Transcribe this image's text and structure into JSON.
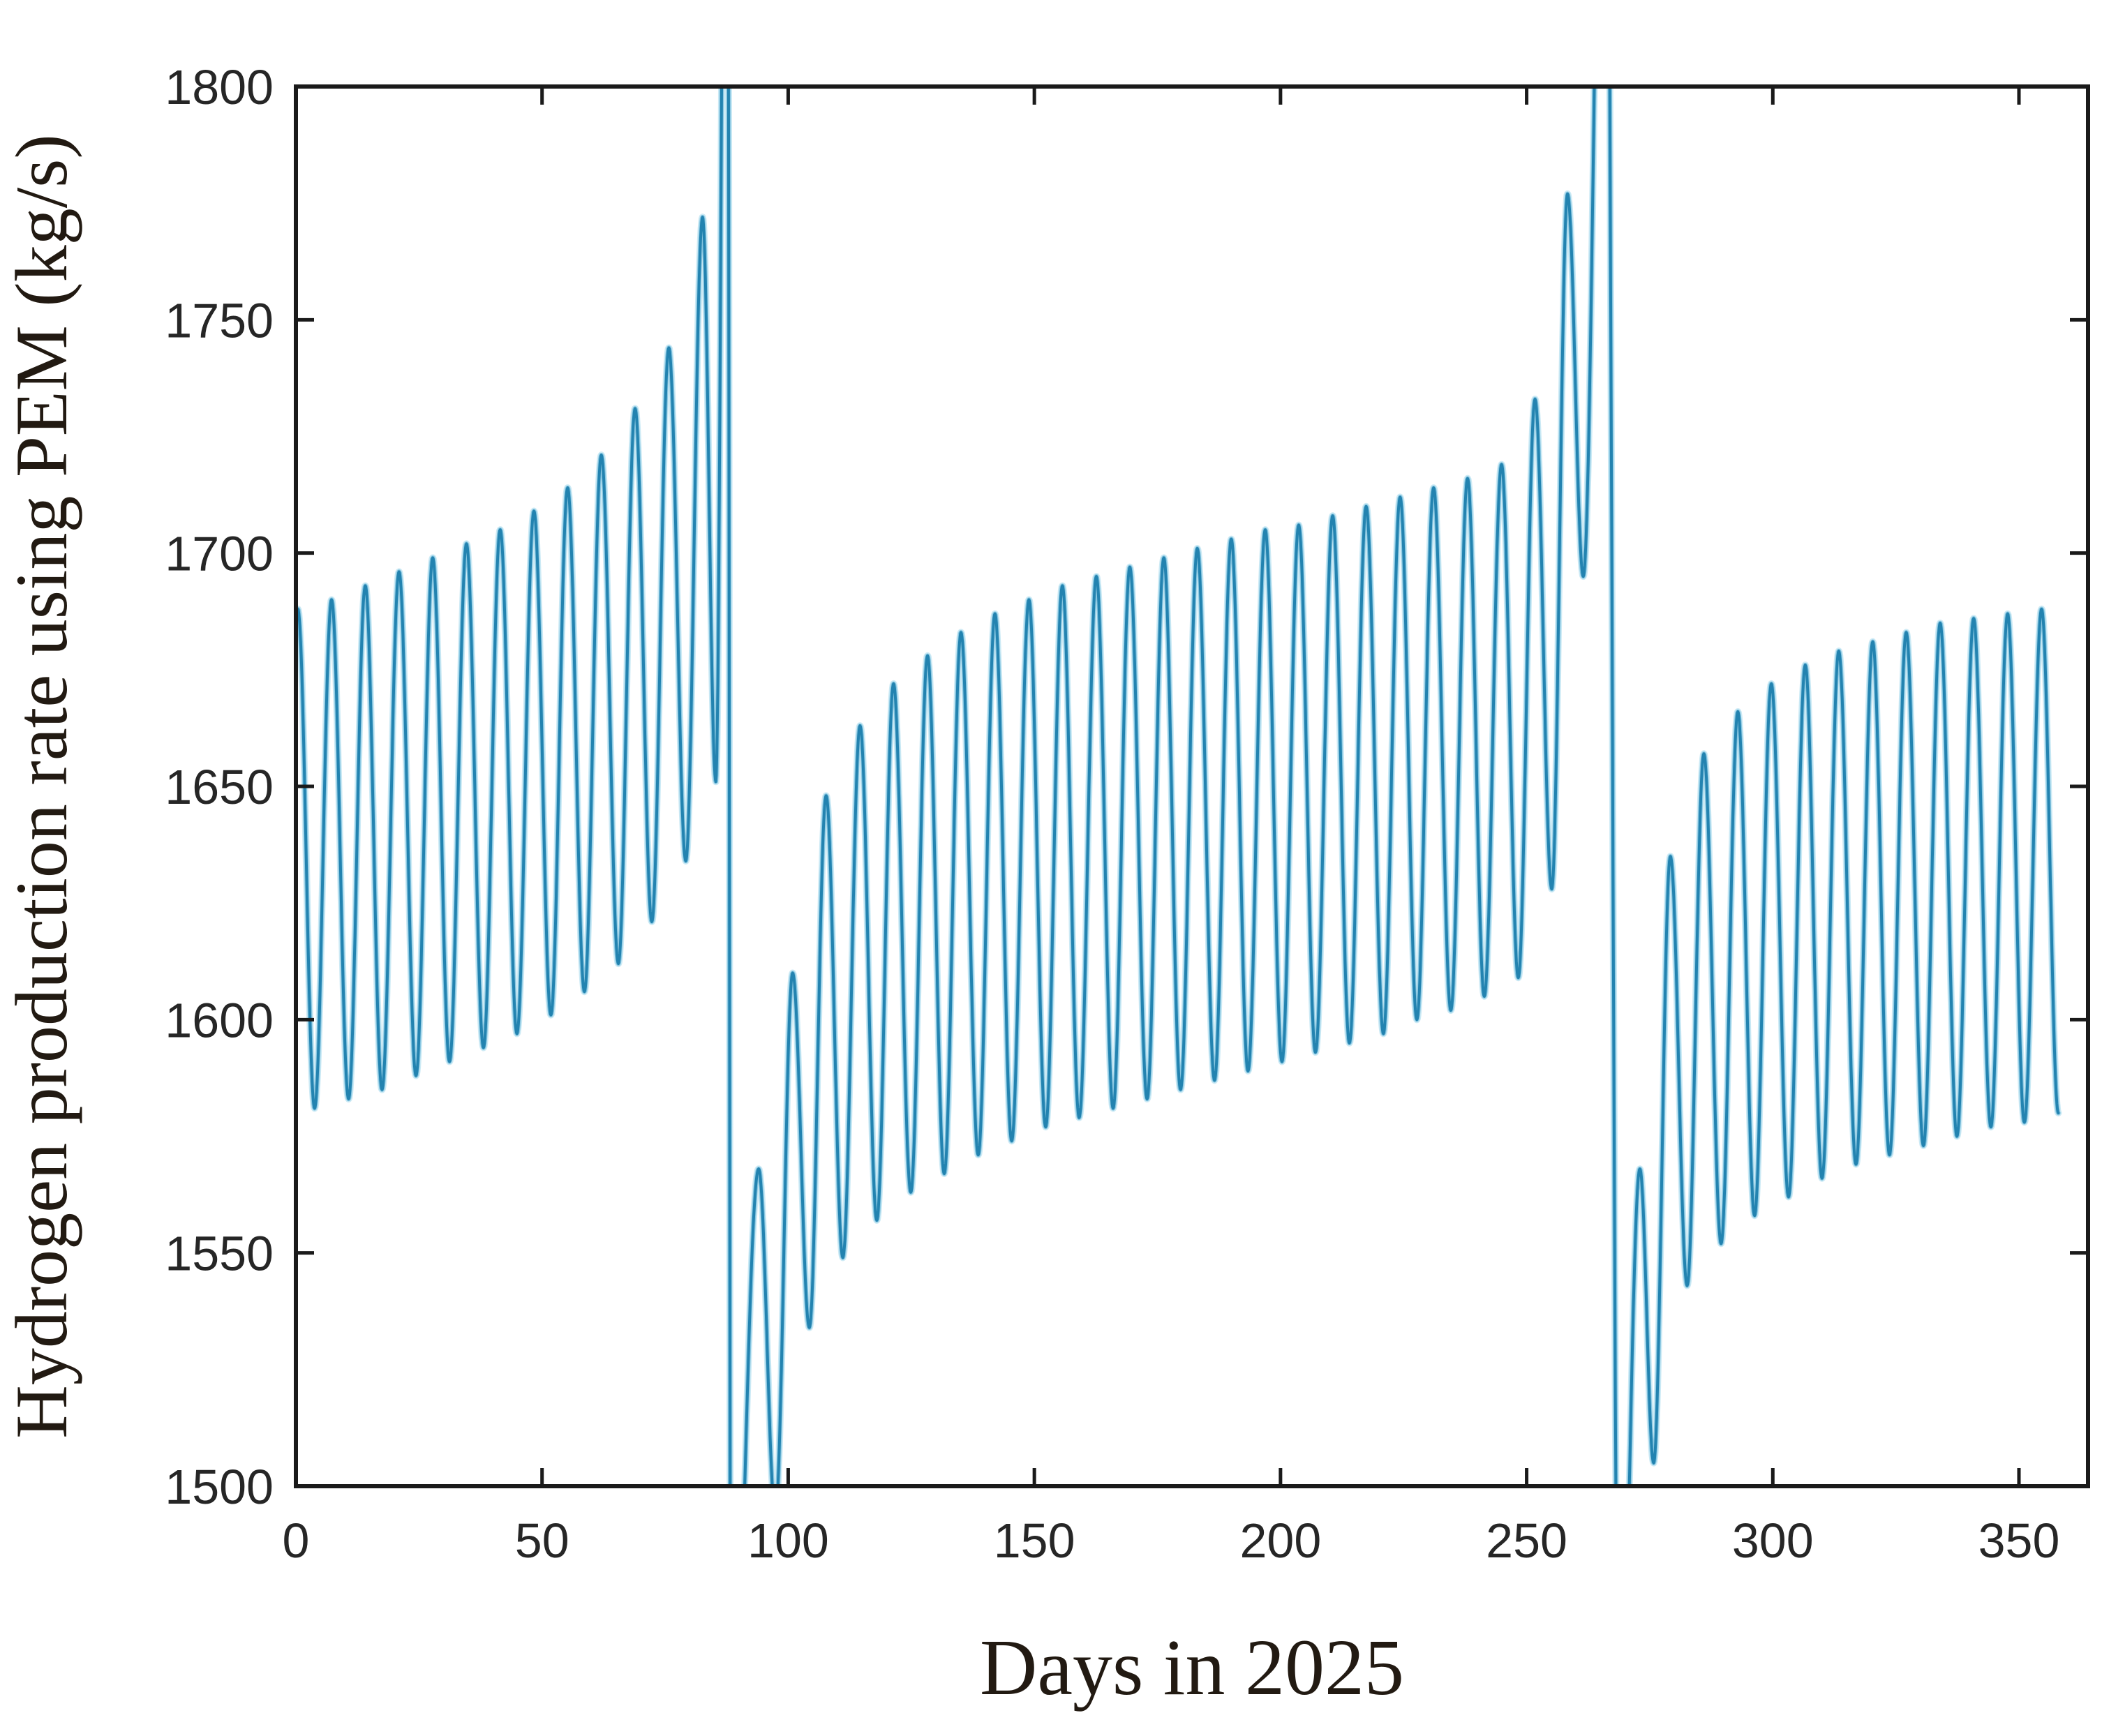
{
  "figure": {
    "background": "#ffffff",
    "axis_color": "#1a1a1a",
    "tick_label_color": "#262626",
    "label_color": "#221a12"
  },
  "chart_data": {
    "type": "line",
    "title": "",
    "xlabel": "Days in 2025",
    "ylabel": "Hydrogen production rate using PEM (kg/s)",
    "xlim": [
      0,
      364
    ],
    "ylim": [
      1500,
      1800
    ],
    "xticks": [
      0,
      50,
      100,
      150,
      200,
      250,
      300,
      350
    ],
    "yticks": [
      1500,
      1550,
      1600,
      1650,
      1700,
      1750,
      1800
    ],
    "grid": false,
    "legend_position": "none",
    "line_color": "#1e7fad",
    "line_mid_color": "#4fa8cf",
    "line_halo_color": "#aadcee",
    "clipped_spikes_days": [
      88.0,
      267.5
    ],
    "series": [
      {
        "name": "Hydrogen production rate",
        "interpolation": "cosine-through-extrema",
        "period_days_approx": 6.85,
        "extrema": [
          [
            0.0,
            1686
          ],
          [
            0.4,
            1688
          ],
          [
            3.8,
            1581
          ],
          [
            7.25,
            1690
          ],
          [
            10.7,
            1583
          ],
          [
            14.1,
            1693
          ],
          [
            17.5,
            1585
          ],
          [
            20.95,
            1696
          ],
          [
            24.4,
            1588
          ],
          [
            27.8,
            1699
          ],
          [
            31.2,
            1591
          ],
          [
            34.65,
            1702
          ],
          [
            38.1,
            1594
          ],
          [
            41.5,
            1705
          ],
          [
            44.9,
            1597
          ],
          [
            48.35,
            1709
          ],
          [
            51.8,
            1601
          ],
          [
            55.2,
            1714
          ],
          [
            58.6,
            1606
          ],
          [
            62.05,
            1721
          ],
          [
            65.5,
            1612
          ],
          [
            68.9,
            1731
          ],
          [
            72.3,
            1621
          ],
          [
            75.75,
            1744
          ],
          [
            79.2,
            1634
          ],
          [
            82.6,
            1772
          ],
          [
            85.3,
            1651
          ],
          [
            87.6,
            1940
          ],
          [
            88.4,
            1435
          ],
          [
            94.0,
            1568
          ],
          [
            97.4,
            1494
          ],
          [
            100.9,
            1610
          ],
          [
            104.3,
            1534
          ],
          [
            107.7,
            1648
          ],
          [
            111.1,
            1549
          ],
          [
            114.6,
            1663
          ],
          [
            118.0,
            1557
          ],
          [
            121.4,
            1672
          ],
          [
            124.9,
            1563
          ],
          [
            128.3,
            1678
          ],
          [
            131.7,
            1567
          ],
          [
            135.1,
            1683
          ],
          [
            138.6,
            1571
          ],
          [
            142.0,
            1687
          ],
          [
            145.4,
            1574
          ],
          [
            148.9,
            1690
          ],
          [
            152.3,
            1577
          ],
          [
            155.7,
            1693
          ],
          [
            159.1,
            1579
          ],
          [
            162.6,
            1695
          ],
          [
            166.0,
            1581
          ],
          [
            169.4,
            1697
          ],
          [
            172.9,
            1583
          ],
          [
            176.3,
            1699
          ],
          [
            179.7,
            1585
          ],
          [
            183.1,
            1701
          ],
          [
            186.6,
            1587
          ],
          [
            190.0,
            1703
          ],
          [
            193.4,
            1589
          ],
          [
            196.9,
            1705
          ],
          [
            200.3,
            1591
          ],
          [
            203.7,
            1706
          ],
          [
            207.1,
            1593
          ],
          [
            210.6,
            1708
          ],
          [
            214.0,
            1595
          ],
          [
            217.4,
            1710
          ],
          [
            220.9,
            1597
          ],
          [
            224.3,
            1712
          ],
          [
            227.7,
            1600
          ],
          [
            231.1,
            1714
          ],
          [
            234.6,
            1602
          ],
          [
            238.0,
            1716
          ],
          [
            241.4,
            1605
          ],
          [
            244.9,
            1719
          ],
          [
            248.3,
            1609
          ],
          [
            251.7,
            1733
          ],
          [
            255.1,
            1628
          ],
          [
            258.3,
            1777
          ],
          [
            261.5,
            1695
          ],
          [
            266.0,
            1905
          ],
          [
            268.8,
            1436
          ],
          [
            273.0,
            1568
          ],
          [
            275.8,
            1505
          ],
          [
            279.2,
            1635
          ],
          [
            282.6,
            1543
          ],
          [
            286.0,
            1657
          ],
          [
            289.5,
            1552
          ],
          [
            292.9,
            1666
          ],
          [
            296.3,
            1558
          ],
          [
            299.7,
            1672
          ],
          [
            303.2,
            1562
          ],
          [
            306.6,
            1676
          ],
          [
            310.0,
            1566
          ],
          [
            313.4,
            1679
          ],
          [
            316.9,
            1569
          ],
          [
            320.3,
            1681
          ],
          [
            323.7,
            1571
          ],
          [
            327.1,
            1683
          ],
          [
            330.6,
            1573
          ],
          [
            334.0,
            1685
          ],
          [
            337.4,
            1575
          ],
          [
            340.8,
            1686
          ],
          [
            344.3,
            1577
          ],
          [
            347.7,
            1687
          ],
          [
            351.1,
            1578
          ],
          [
            354.6,
            1688
          ],
          [
            358.0,
            1580
          ]
        ]
      }
    ]
  }
}
